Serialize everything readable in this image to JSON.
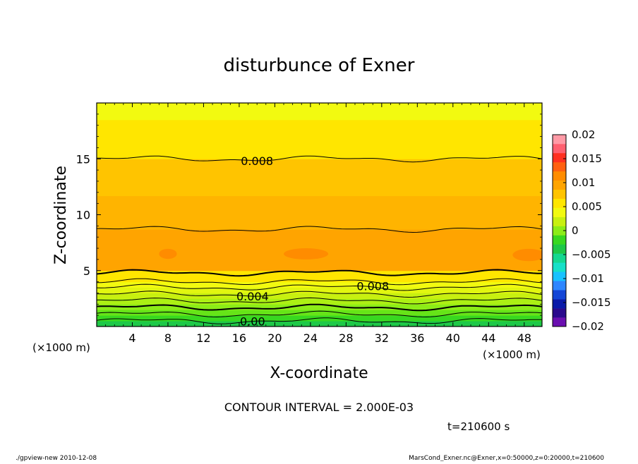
{
  "footer": {
    "left": "./gpview-new  2010-12-08",
    "right": "MarsCond_Exner.nc@Exner,x=0:50000,z=0:20000,t=210600"
  },
  "contour_interval": "CONTOUR INTERVAL = 2.000E-03",
  "time_label": "t=210600 s",
  "chart_data": {
    "type": "heatmap",
    "title": "disturbunce of Exner",
    "xlabel": "X-coordinate",
    "ylabel": "Z-coordinate",
    "x_unit": "(×1000 m)",
    "y_unit": "(×1000 m)",
    "xlim": [
      0,
      50
    ],
    "ylim": [
      0,
      20
    ],
    "x_ticks": [
      4,
      8,
      12,
      16,
      20,
      24,
      28,
      32,
      36,
      40,
      44,
      48
    ],
    "y_ticks": [
      5,
      10,
      15
    ],
    "colorbar": {
      "min": -0.02,
      "max": 0.02,
      "labels": [
        {
          "v": 0.02,
          "t": "0.02"
        },
        {
          "v": 0.015,
          "t": "0.015"
        },
        {
          "v": 0.01,
          "t": "0.01"
        },
        {
          "v": 0.005,
          "t": "0.005"
        },
        {
          "v": 0,
          "t": "0"
        },
        {
          "v": -0.005,
          "t": "−0.005"
        },
        {
          "v": -0.01,
          "t": "−0.01"
        },
        {
          "v": -0.015,
          "t": "−0.015"
        },
        {
          "v": -0.02,
          "t": "−0.02"
        }
      ],
      "colors": [
        "#6a0fb0",
        "#2a0a8c",
        "#0a1aa8",
        "#1446d6",
        "#2e86ff",
        "#18c2ff",
        "#16e0c8",
        "#14d890",
        "#1ec848",
        "#38d820",
        "#8cec18",
        "#c8f010",
        "#f2fa10",
        "#ffe600",
        "#ffc400",
        "#ffa400",
        "#ff8c00",
        "#ff6010",
        "#ff3020",
        "#ff6070",
        "#ff9aa6"
      ]
    },
    "bands": [
      {
        "z": [
          0.0,
          0.5
        ],
        "color": "#1ec848"
      },
      {
        "z": [
          0.5,
          1.0
        ],
        "color": "#38d820"
      },
      {
        "z": [
          1.0,
          1.5
        ],
        "color": "#66e418"
      },
      {
        "z": [
          1.5,
          2.0
        ],
        "color": "#8cec18"
      },
      {
        "z": [
          2.0,
          2.5
        ],
        "color": "#acf014"
      },
      {
        "z": [
          2.5,
          3.0
        ],
        "color": "#c8f010"
      },
      {
        "z": [
          3.0,
          3.5
        ],
        "color": "#e2f610"
      },
      {
        "z": [
          3.5,
          4.0
        ],
        "color": "#f2fa10"
      },
      {
        "z": [
          4.0,
          5.0
        ],
        "color": "#ffe600"
      },
      {
        "z": [
          5.0,
          8.7
        ],
        "color": "#ffa400"
      },
      {
        "z": [
          8.7,
          11.7
        ],
        "color": "#ffb400"
      },
      {
        "z": [
          11.7,
          15.0
        ],
        "color": "#ffc400"
      },
      {
        "z": [
          15.0,
          18.5
        ],
        "color": "#ffe600"
      },
      {
        "z": [
          18.5,
          20.0
        ],
        "color": "#f2fa10"
      }
    ],
    "blobs": [
      {
        "x": 8.0,
        "z": 6.5,
        "rx": 1.0,
        "rz": 0.45,
        "color": "#ff8c00"
      },
      {
        "x": 23.5,
        "z": 6.5,
        "rx": 2.5,
        "rz": 0.5,
        "color": "#ff8c00"
      },
      {
        "x": 48.5,
        "z": 6.4,
        "rx": 1.8,
        "rz": 0.55,
        "color": "#ff8c00"
      }
    ],
    "contours": [
      {
        "z": 0.5,
        "label": "0.00",
        "label_x": 17.5
      },
      {
        "z": 1.1
      },
      {
        "z": 1.7,
        "bold": true
      },
      {
        "z": 2.3
      },
      {
        "z": 2.9,
        "label": "0.004",
        "label_x": 17.5
      },
      {
        "z": 3.5
      },
      {
        "z": 4.0
      },
      {
        "z": 4.8,
        "bold": true
      },
      {
        "z": 8.7
      },
      {
        "z": 15.0,
        "label": "0.008",
        "label_x": 18
      },
      {
        "z": 3.6,
        "label": "0.008",
        "label_x": 31,
        "label_only": true
      }
    ]
  }
}
